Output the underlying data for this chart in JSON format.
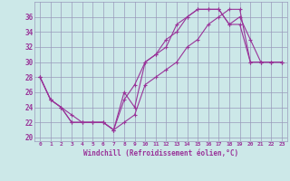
{
  "xlabel": "Windchill (Refroidissement éolien,°C)",
  "bg_color": "#cce8e8",
  "grid_color": "#9999bb",
  "line_color": "#993399",
  "xlim": [
    -0.5,
    23.5
  ],
  "ylim": [
    19.5,
    38.0
  ],
  "yticks": [
    20,
    22,
    24,
    26,
    28,
    30,
    32,
    34,
    36
  ],
  "xticks": [
    0,
    1,
    2,
    3,
    4,
    5,
    6,
    7,
    8,
    9,
    10,
    11,
    12,
    13,
    14,
    15,
    16,
    17,
    18,
    19,
    20,
    21,
    22,
    23
  ],
  "series": [
    {
      "x": [
        0,
        1,
        2,
        3,
        4,
        5,
        6,
        7,
        8,
        9,
        10,
        11,
        12,
        13,
        14,
        15,
        16,
        17,
        18,
        19,
        20,
        21,
        22,
        23
      ],
      "y": [
        28,
        25,
        24,
        23,
        22,
        22,
        22,
        21,
        26,
        24,
        30,
        31,
        32,
        35,
        36,
        37,
        37,
        37,
        35,
        36,
        33,
        30,
        30,
        30
      ]
    },
    {
      "x": [
        0,
        1,
        2,
        3,
        4,
        5,
        6,
        7,
        8,
        9,
        10,
        11,
        12,
        13,
        14,
        15,
        16,
        17,
        18,
        19,
        20,
        21,
        22,
        23
      ],
      "y": [
        28,
        25,
        24,
        22,
        22,
        22,
        22,
        21,
        25,
        27,
        30,
        31,
        33,
        34,
        36,
        37,
        37,
        37,
        35,
        35,
        30,
        30,
        30,
        30
      ]
    },
    {
      "x": [
        0,
        1,
        2,
        3,
        4,
        5,
        6,
        7,
        8,
        9,
        10,
        11,
        12,
        13,
        14,
        15,
        16,
        17,
        18,
        19,
        20,
        21,
        22,
        23
      ],
      "y": [
        28,
        25,
        24,
        22,
        22,
        22,
        22,
        21,
        22,
        23,
        27,
        28,
        29,
        30,
        32,
        33,
        35,
        36,
        37,
        37,
        30,
        30,
        30,
        30
      ]
    }
  ]
}
